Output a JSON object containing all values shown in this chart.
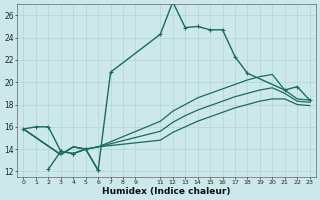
{
  "xlabel": "Humidex (Indice chaleur)",
  "bg_color": "#cce8eb",
  "grid_color": "#b0d4d8",
  "line_color": "#1a6b5e",
  "xlim": [
    -0.5,
    23.5
  ],
  "ylim": [
    11.5,
    27.0
  ],
  "xticks": [
    0,
    1,
    2,
    3,
    4,
    5,
    6,
    7,
    8,
    9,
    11,
    12,
    13,
    14,
    15,
    16,
    17,
    18,
    19,
    20,
    21,
    22,
    23
  ],
  "yticks": [
    12,
    14,
    16,
    18,
    20,
    22,
    24,
    26
  ],
  "series": [
    {
      "x": [
        0,
        1,
        2,
        3,
        4,
        5,
        6,
        7,
        11,
        12,
        13,
        14,
        15,
        16,
        17,
        18,
        21,
        22,
        23
      ],
      "y": [
        15.8,
        16.0,
        16.0,
        13.8,
        13.6,
        14.0,
        12.1,
        20.9,
        24.3,
        27.2,
        24.9,
        25.0,
        24.7,
        24.7,
        22.3,
        20.8,
        19.3,
        19.6,
        18.4
      ],
      "marker": "+",
      "markersize": 3.5,
      "lw": 1.0
    },
    {
      "x": [
        0,
        3,
        4,
        5,
        6,
        11,
        12,
        13,
        14,
        15,
        16,
        17,
        18,
        19,
        20,
        21,
        22,
        23
      ],
      "y": [
        15.8,
        13.5,
        14.2,
        14.0,
        14.2,
        16.5,
        17.4,
        18.0,
        18.6,
        19.0,
        19.4,
        19.8,
        20.2,
        20.5,
        20.7,
        19.3,
        18.5,
        18.4
      ],
      "marker": null,
      "markersize": 0,
      "lw": 0.9
    },
    {
      "x": [
        0,
        3,
        4,
        5,
        6,
        11,
        12,
        13,
        14,
        15,
        16,
        17,
        18,
        19,
        20,
        21,
        22,
        23
      ],
      "y": [
        15.8,
        13.5,
        14.2,
        14.0,
        14.2,
        15.6,
        16.4,
        17.0,
        17.5,
        17.9,
        18.3,
        18.7,
        19.0,
        19.3,
        19.5,
        19.0,
        18.3,
        18.2
      ],
      "marker": null,
      "markersize": 0,
      "lw": 0.9
    },
    {
      "x": [
        0,
        3,
        4,
        5,
        6,
        11,
        12,
        13,
        14,
        15,
        16,
        17,
        18,
        19,
        20,
        21,
        22,
        23
      ],
      "y": [
        15.8,
        13.5,
        14.2,
        14.0,
        14.2,
        14.8,
        15.5,
        16.0,
        16.5,
        16.9,
        17.3,
        17.7,
        18.0,
        18.3,
        18.5,
        18.5,
        18.0,
        17.9
      ],
      "marker": null,
      "markersize": 0,
      "lw": 0.9
    },
    {
      "x": [
        2,
        3,
        4,
        5,
        6
      ],
      "y": [
        12.2,
        13.8,
        13.6,
        14.0,
        12.1
      ],
      "marker": "+",
      "markersize": 3.5,
      "lw": 1.0
    }
  ]
}
